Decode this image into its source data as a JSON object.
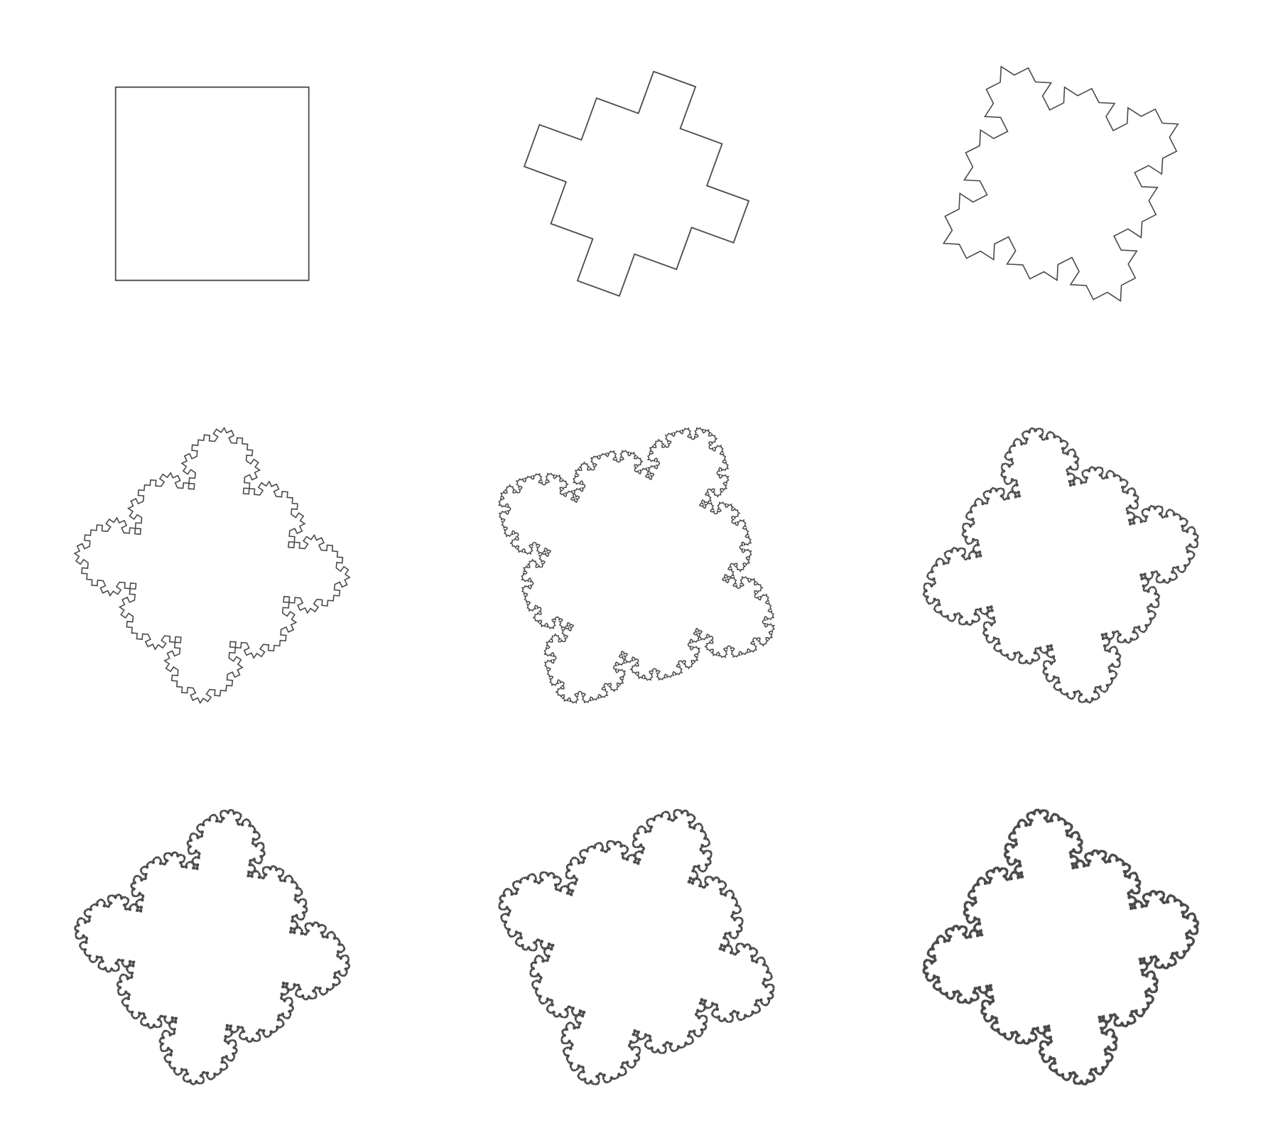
{
  "colors": {
    "background": "#ffffff",
    "stroke": "#4a4a4a"
  },
  "figure": {
    "panels": [
      {
        "label": "",
        "iteration": 0
      },
      {
        "label": "",
        "iteration": 1
      },
      {
        "label": "",
        "iteration": 2
      },
      {
        "label": "",
        "iteration": 3
      },
      {
        "label": "",
        "iteration": 4
      },
      {
        "label": "",
        "iteration": 5
      },
      {
        "label": "",
        "iteration": 6
      },
      {
        "label": "",
        "iteration": 7
      },
      {
        "label": "",
        "iteration": 8
      }
    ]
  }
}
